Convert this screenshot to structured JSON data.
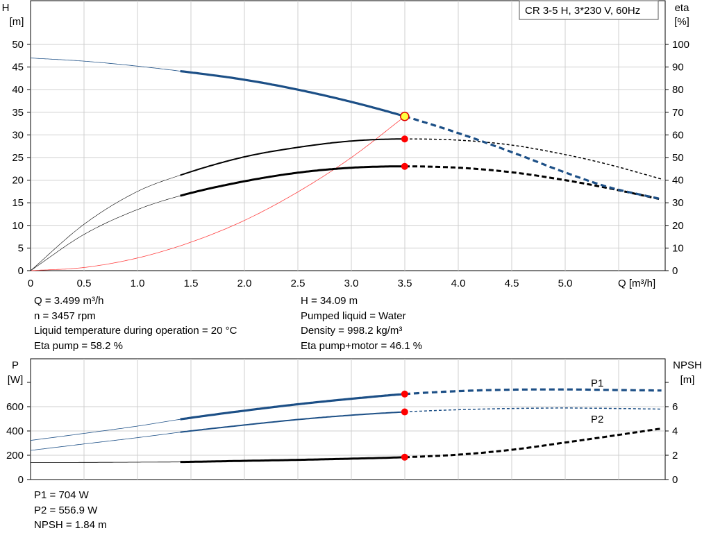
{
  "chart_data": [
    {
      "type": "line",
      "title": "CR 3-5 H, 3*230 V, 60Hz",
      "xlabel": "Q [m³/h]",
      "ylabel_left": [
        "H",
        "[m]"
      ],
      "ylabel_right": [
        "eta",
        "[%]"
      ],
      "xlim": [
        0,
        5.9
      ],
      "ylim": [
        0,
        50
      ],
      "ylim_right": [
        0,
        100
      ],
      "x_ticks": [
        "0",
        "0.5",
        "1.0",
        "1.5",
        "2.0",
        "2.5",
        "3.0",
        "3.5",
        "4.0",
        "4.5",
        "5.0"
      ],
      "y_ticks_left": [
        "0",
        "5",
        "10",
        "15",
        "20",
        "25",
        "30",
        "35",
        "40",
        "45",
        "50"
      ],
      "y_ticks_right": [
        "0",
        "10",
        "20",
        "30",
        "40",
        "50",
        "60",
        "70",
        "80",
        "90",
        "100"
      ],
      "grid": true,
      "operating_point": {
        "x": 3.499,
        "H": 34.09,
        "eta_pump": 58.2,
        "eta_total": 46.1
      },
      "series": [
        {
          "key": "H",
          "axis": "left",
          "color": "#1c4f86",
          "x": [
            0,
            0.5,
            1.0,
            1.4,
            2.0,
            2.5,
            3.0,
            3.5,
            4.0,
            4.5,
            5.0,
            5.4,
            5.9
          ],
          "values": [
            47,
            46.3,
            45.2,
            44.1,
            42.2,
            40.0,
            37.3,
            34.1,
            30.4,
            26.2,
            21.7,
            18.5,
            15.8
          ]
        },
        {
          "key": "eta_pump",
          "axis": "right",
          "color": "#000000",
          "x": [
            0,
            0.5,
            1.0,
            1.4,
            2.0,
            2.5,
            3.0,
            3.5,
            4.0,
            4.5,
            5.0,
            5.4,
            5.9
          ],
          "values": [
            0,
            20.5,
            35.0,
            42.2,
            50.3,
            54.5,
            57.3,
            58.2,
            57.7,
            55.5,
            51.3,
            47.0,
            40.5
          ]
        },
        {
          "key": "eta_total",
          "axis": "right",
          "color": "#000000",
          "x": [
            0,
            0.5,
            1.0,
            1.4,
            2.0,
            2.5,
            3.0,
            3.5,
            4.0,
            4.5,
            5.0,
            5.4,
            5.9
          ],
          "values": [
            0,
            16.0,
            27.0,
            33.1,
            39.5,
            43.3,
            45.5,
            46.1,
            45.5,
            43.5,
            40.0,
            36.5,
            31.5
          ]
        },
        {
          "key": "system",
          "axis": "left",
          "color": "#ff4040",
          "x": [
            0,
            0.5,
            1.0,
            1.5,
            2.0,
            2.5,
            3.0,
            3.5
          ],
          "values": [
            0,
            0.7,
            2.8,
            6.3,
            11.1,
            17.4,
            25.0,
            34.09
          ]
        }
      ]
    },
    {
      "type": "line",
      "ylabel_left": [
        "P",
        "[W]"
      ],
      "ylabel_right": [
        "NPSH",
        "[m]"
      ],
      "xlim": [
        0,
        5.9
      ],
      "ylim": [
        0,
        800
      ],
      "ylim_right": [
        0,
        8
      ],
      "y_ticks_left": [
        "0",
        "200",
        "400",
        "600"
      ],
      "y_ticks_right": [
        "0",
        "2",
        "4",
        "6"
      ],
      "grid": true,
      "operating_point": {
        "x": 3.499,
        "P1": 704,
        "P2": 556.9,
        "NPSH": 1.84
      },
      "series": [
        {
          "name": "P1",
          "key": "P1",
          "axis": "left",
          "color": "#1c4f86",
          "x": [
            0,
            0.5,
            1.0,
            1.4,
            2.0,
            2.5,
            3.0,
            3.5,
            4.0,
            4.5,
            5.0,
            5.4,
            5.9
          ],
          "values": [
            322,
            380,
            440,
            496,
            567,
            620,
            665,
            704,
            728,
            740,
            742,
            738,
            733
          ]
        },
        {
          "name": "P2",
          "key": "P2",
          "axis": "left",
          "color": "#1c4f86",
          "x": [
            0,
            0.5,
            1.0,
            1.4,
            2.0,
            2.5,
            3.0,
            3.5,
            4.0,
            4.5,
            5.0,
            5.4,
            5.9
          ],
          "values": [
            240,
            293,
            345,
            390,
            449,
            494,
            530,
            556.9,
            575,
            585,
            589,
            586,
            580
          ]
        },
        {
          "key": "NPSH",
          "axis": "right",
          "color": "#000000",
          "x": [
            0,
            0.5,
            1.0,
            1.4,
            2.0,
            2.5,
            3.0,
            3.5,
            4.0,
            4.5,
            5.0,
            5.4,
            5.9
          ],
          "values": [
            1.4,
            1.41,
            1.43,
            1.45,
            1.54,
            1.62,
            1.72,
            1.84,
            2.05,
            2.45,
            3.05,
            3.55,
            4.2
          ]
        }
      ]
    }
  ],
  "info_top": {
    "left": [
      "Q = 3.499 m³/h",
      "n = 3457 rpm",
      "Liquid temperature during operation = 20 °C",
      "Eta pump = 58.2 %"
    ],
    "right": [
      "H = 34.09 m",
      "Pumped liquid = Water",
      "Density = 998.2 kg/m³",
      "Eta pump+motor = 46.1 %"
    ]
  },
  "info_bottom": [
    "P1 = 704 W",
    "P2 = 556.9 W",
    "NPSH = 1.84 m"
  ]
}
